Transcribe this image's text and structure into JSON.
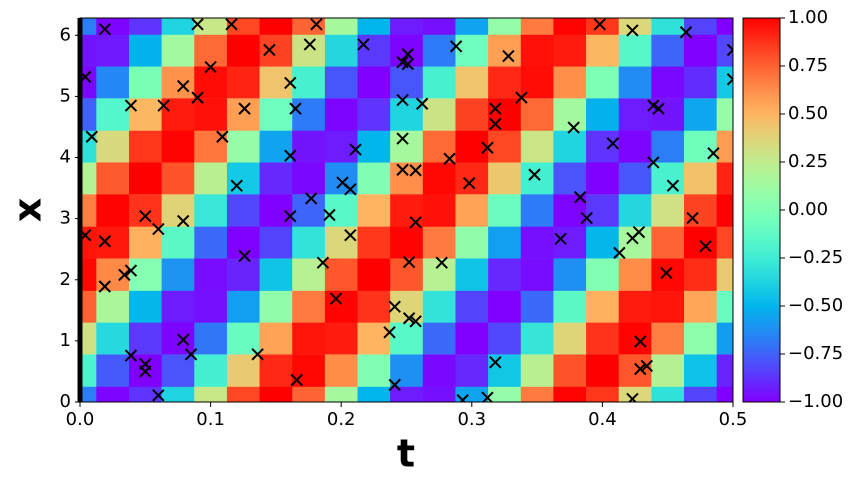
{
  "chart_data": {
    "type": "heatmap",
    "xlabel": "t",
    "ylabel": "x",
    "colormap": "rainbow",
    "x": [
      0,
      0.025,
      0.05,
      0.075,
      0.1,
      0.125,
      0.15,
      0.175,
      0.2,
      0.225,
      0.25,
      0.275,
      0.3,
      0.325,
      0.35,
      0.375,
      0.4,
      0.425,
      0.45,
      0.475,
      0.5
    ],
    "y": [
      0,
      0.52,
      1.05,
      1.57,
      2.09,
      2.62,
      3.14,
      3.67,
      4.19,
      4.71,
      5.24,
      5.76,
      6.28
    ],
    "z": [
      [
        -0.67,
        -0.2,
        0.31,
        0.75,
        0.98,
        0.95,
        0.67,
        0.2,
        -0.31,
        -0.75,
        -0.98,
        -0.95,
        -0.67
      ],
      [
        -0.99,
        -0.77,
        -0.35,
        0.17,
        0.64,
        0.94,
        0.99,
        0.77,
        0.35,
        -0.17,
        -0.64,
        -0.94,
        -0.99
      ],
      [
        -0.87,
        -1.0,
        -0.86,
        -0.49,
        0.02,
        0.51,
        0.87,
        1.0,
        0.86,
        0.49,
        -0.02,
        -0.51,
        -0.87
      ],
      [
        -0.38,
        -0.79,
        -0.99,
        -0.93,
        -0.61,
        -0.14,
        0.38,
        0.79,
        0.99,
        0.93,
        0.61,
        0.14,
        -0.38
      ],
      [
        0.28,
        -0.23,
        -0.69,
        -0.96,
        -0.97,
        -0.73,
        -0.28,
        0.23,
        0.69,
        0.96,
        0.97,
        0.73,
        0.28
      ],
      [
        0.82,
        0.42,
        -0.09,
        -0.57,
        -0.91,
        -1.0,
        -0.82,
        -0.42,
        0.09,
        0.57,
        0.91,
        1.0,
        0.82
      ],
      [
        1.0,
        0.9,
        0.56,
        0.07,
        -0.44,
        -0.83,
        -1.0,
        -0.9,
        -0.56,
        -0.07,
        0.44,
        0.83,
        1.0
      ],
      [
        0.74,
        0.98,
        0.95,
        0.68,
        0.22,
        -0.3,
        -0.74,
        -0.98,
        -0.95,
        -0.68,
        -0.22,
        0.3,
        0.74
      ],
      [
        0.15,
        0.63,
        0.93,
        0.99,
        0.78,
        0.36,
        -0.15,
        -0.63,
        -0.93,
        -0.99,
        -0.78,
        -0.36,
        0.15
      ],
      [
        -0.5,
        0.0,
        0.5,
        0.87,
        1.0,
        0.86,
        0.5,
        0.0,
        -0.5,
        -0.87,
        -1.0,
        -0.86,
        -0.5
      ],
      [
        -0.93,
        -0.62,
        -0.15,
        0.37,
        0.78,
        0.99,
        0.93,
        0.62,
        0.15,
        -0.37,
        -0.78,
        -0.99,
        -0.93
      ],
      [
        -0.96,
        -0.98,
        -0.73,
        -0.3,
        0.22,
        0.68,
        0.96,
        0.98,
        0.73,
        0.3,
        -0.22,
        -0.68,
        -0.96
      ],
      [
        -0.56,
        -0.9,
        -1.0,
        -0.83,
        -0.44,
        0.07,
        0.56,
        0.9,
        1.0,
        0.83,
        0.44,
        -0.07,
        -0.56
      ],
      [
        0.08,
        -0.43,
        -0.82,
        -1.0,
        -0.9,
        -0.57,
        -0.08,
        0.43,
        0.82,
        1.0,
        0.9,
        0.57,
        0.08
      ],
      [
        0.68,
        0.23,
        -0.29,
        -0.73,
        -0.97,
        -0.96,
        -0.68,
        -0.23,
        0.29,
        0.73,
        0.97,
        0.96,
        0.68
      ],
      [
        0.99,
        0.79,
        0.37,
        -0.14,
        -0.62,
        -0.93,
        -0.99,
        -0.79,
        -0.37,
        0.14,
        0.62,
        0.93,
        0.99
      ],
      [
        0.86,
        1.0,
        0.87,
        0.51,
        0.01,
        -0.49,
        -0.86,
        -1.0,
        -0.87,
        -0.51,
        -0.01,
        0.49,
        0.86
      ],
      [
        0.36,
        0.78,
        0.99,
        0.93,
        0.63,
        0.16,
        -0.36,
        -0.78,
        -0.99,
        -0.93,
        -0.63,
        -0.16,
        0.36
      ],
      [
        -0.31,
        0.21,
        0.67,
        0.95,
        0.98,
        0.74,
        0.31,
        -0.21,
        -0.67,
        -0.95,
        -0.98,
        -0.74,
        -0.31
      ],
      [
        -0.83,
        -0.45,
        0.06,
        0.55,
        0.89,
        1.0,
        0.83,
        0.45,
        -0.06,
        -0.55,
        -0.89,
        -1.0,
        -0.83
      ],
      [
        -1.0,
        -0.91,
        -0.58,
        -0.09,
        0.42,
        0.82,
        1.0,
        0.91,
        0.58,
        0.09,
        -0.42,
        -0.82,
        -1.0
      ]
    ],
    "xlim": [
      0,
      0.5
    ],
    "ylim": [
      0,
      6.283
    ],
    "xticks": [
      {
        "value": 0,
        "label": "0.0"
      },
      0.1,
      0.2,
      0.3,
      0.4,
      0.5
    ],
    "yticks": [
      0,
      1,
      2,
      3,
      4,
      5,
      6
    ],
    "clim": [
      -1,
      1
    ],
    "cticks": [
      {
        "value": 1,
        "label": "1.00"
      },
      {
        "value": 0.75,
        "label": "0.75"
      },
      {
        "value": 0.5,
        "label": "0.50"
      },
      {
        "value": 0.25,
        "label": "0.25"
      },
      {
        "value": 0,
        "label": "0.00"
      },
      {
        "value": -0.25,
        "label": "−0.25"
      },
      {
        "value": -0.5,
        "label": "−0.50"
      },
      {
        "value": -0.75,
        "label": "−0.75"
      },
      {
        "value": -1,
        "label": "−1.00"
      }
    ],
    "scatter": {
      "marker": "x",
      "color": "#000000",
      "x": [
        0.004,
        0.009,
        0.019,
        0.004,
        0.019,
        0.019,
        0.034,
        0.039,
        0.039,
        0.05,
        0.06,
        0.039,
        0.05,
        0.05,
        0.06,
        0.064,
        0.079,
        0.09,
        0.09,
        0.079,
        0.079,
        0.085,
        0.1,
        0.109,
        0.116,
        0.126,
        0.12,
        0.126,
        0.136,
        0.145,
        0.161,
        0.165,
        0.161,
        0.161,
        0.166,
        0.176,
        0.177,
        0.181,
        0.191,
        0.186,
        0.196,
        0.201,
        0.207,
        0.207,
        0.211,
        0.217,
        0.237,
        0.241,
        0.241,
        0.247,
        0.251,
        0.251,
        0.247,
        0.247,
        0.247,
        0.257,
        0.257,
        0.252,
        0.252,
        0.257,
        0.262,
        0.283,
        0.277,
        0.288,
        0.298,
        0.293,
        0.312,
        0.312,
        0.318,
        0.318,
        0.318,
        0.328,
        0.338,
        0.348,
        0.368,
        0.378,
        0.383,
        0.388,
        0.398,
        0.408,
        0.413,
        0.423,
        0.423,
        0.423,
        0.428,
        0.429,
        0.429,
        0.434,
        0.439,
        0.439,
        0.443,
        0.449,
        0.454,
        0.464,
        0.469,
        0.479,
        0.485,
        0.5,
        0.5
      ],
      "y": [
        5.32,
        4.34,
        6.1,
        2.73,
        2.63,
        1.89,
        2.08,
        2.15,
        4.85,
        3.04,
        2.83,
        0.76,
        0.62,
        0.5,
        0.11,
        4.85,
        5.17,
        6.18,
        4.98,
        2.96,
        1.02,
        0.78,
        5.48,
        4.34,
        6.18,
        4.8,
        3.54,
        2.39,
        0.78,
        5.76,
        5.22,
        4.8,
        4.03,
        3.04,
        0.36,
        5.85,
        3.33,
        6.18,
        3.06,
        2.28,
        1.69,
        3.59,
        3.48,
        2.73,
        4.13,
        5.85,
        1.14,
        1.56,
        0.28,
        5.56,
        5.69,
        5.53,
        4.94,
        4.31,
        3.8,
        3.79,
        2.94,
        2.29,
        1.37,
        1.32,
        4.88,
        3.98,
        2.28,
        5.82,
        3.58,
        0.03,
        0.07,
        4.16,
        4.8,
        4.55,
        0.65,
        5.66,
        4.98,
        3.72,
        2.67,
        4.49,
        3.35,
        3.01,
        6.18,
        4.23,
        2.44,
        6.08,
        0.05,
        2.68,
        2.78,
        0.99,
        0.54,
        0.59,
        3.92,
        4.85,
        4.8,
        2.11,
        3.54,
        6.05,
        3.01,
        2.55,
        4.07,
        5.76,
        5.28
      ]
    }
  }
}
